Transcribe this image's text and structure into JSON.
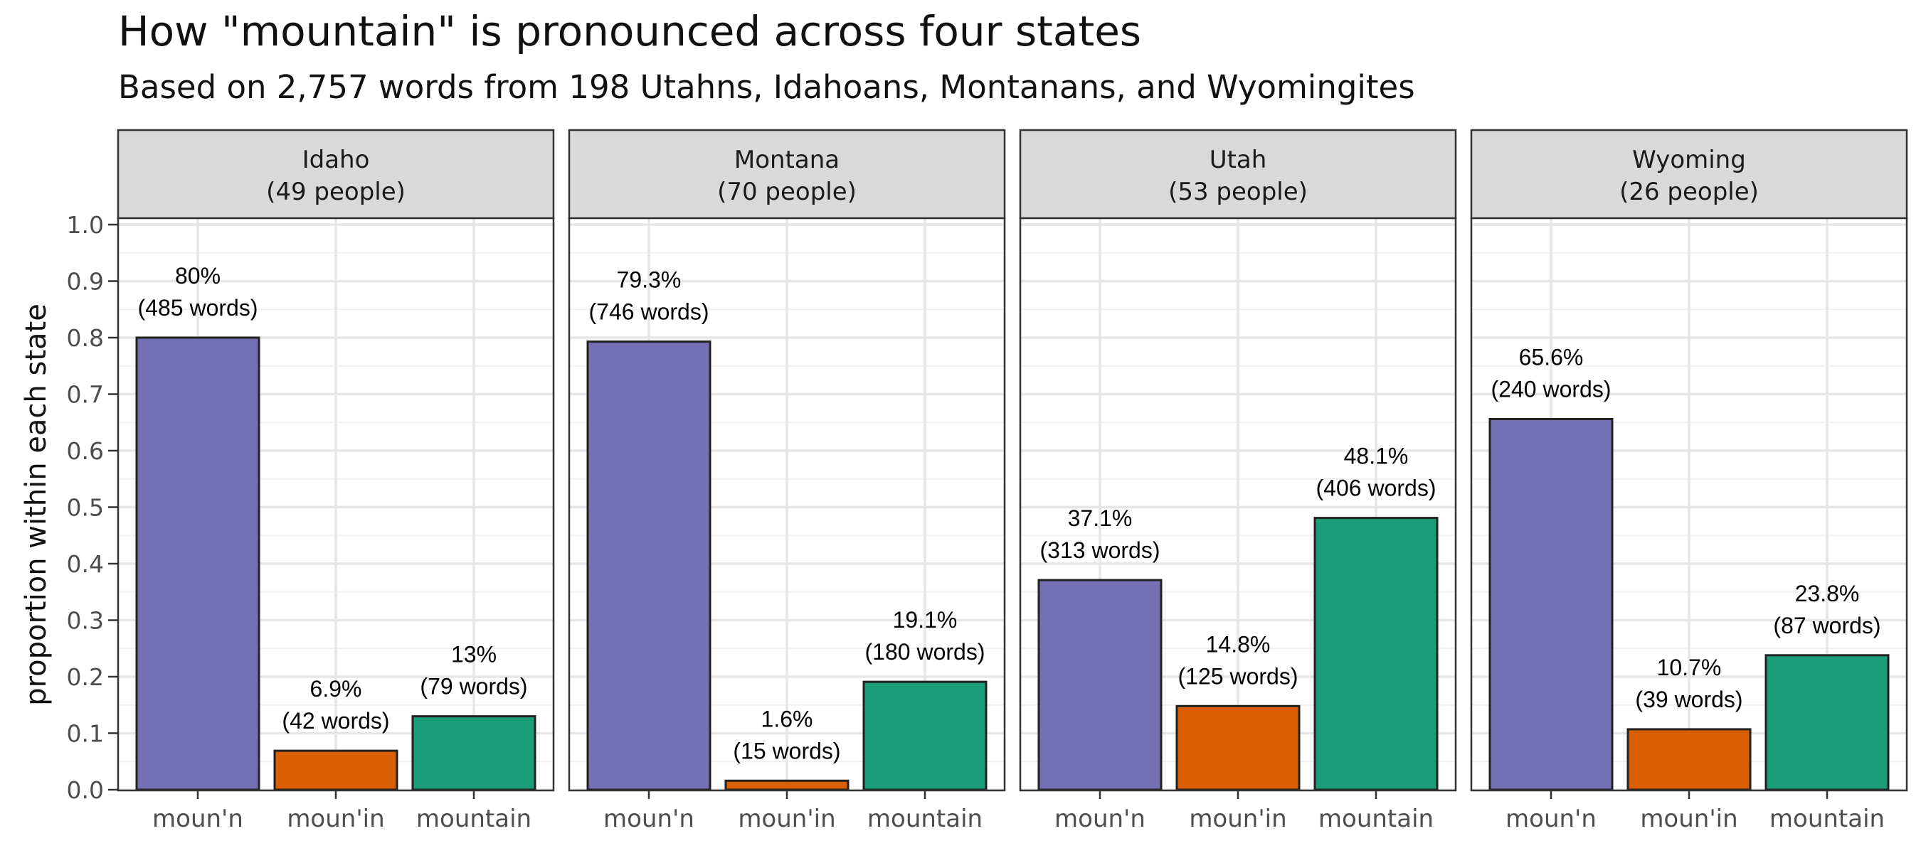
{
  "chart_data": {
    "type": "bar",
    "title": "How \"mountain\" is pronounced across four states",
    "subtitle": "Based on 2,757 words from 198 Utahns, Idahoans, Montanans, and Wyomingites",
    "ylabel": "proportion within each state",
    "xlabel": "",
    "ylim": [
      0,
      1.0
    ],
    "yticks": [
      "0.0",
      "0.1",
      "0.2",
      "0.3",
      "0.4",
      "0.5",
      "0.6",
      "0.7",
      "0.8",
      "0.9",
      "1.0"
    ],
    "grid": true,
    "legend": "none",
    "categories": [
      "moun'n",
      "moun'in",
      "mountain"
    ],
    "category_colors": [
      "#7570b3",
      "#d95f02",
      "#1b9e77"
    ],
    "facets": [
      {
        "name": "Idaho",
        "sub": "(49 people)",
        "values": [
          0.8,
          0.069,
          0.13
        ],
        "pct_labels": [
          "80%",
          "6.9%",
          "13%"
        ],
        "count_labels": [
          "(485 words)",
          "(42 words)",
          "(79 words)"
        ]
      },
      {
        "name": "Montana",
        "sub": "(70 people)",
        "values": [
          0.793,
          0.016,
          0.191
        ],
        "pct_labels": [
          "79.3%",
          "1.6%",
          "19.1%"
        ],
        "count_labels": [
          "(746 words)",
          "(15 words)",
          "(180 words)"
        ]
      },
      {
        "name": "Utah",
        "sub": "(53 people)",
        "values": [
          0.371,
          0.148,
          0.481
        ],
        "pct_labels": [
          "37.1%",
          "14.8%",
          "48.1%"
        ],
        "count_labels": [
          "(313 words)",
          "(125 words)",
          "(406 words)"
        ]
      },
      {
        "name": "Wyoming",
        "sub": "(26 people)",
        "values": [
          0.656,
          0.107,
          0.238
        ],
        "pct_labels": [
          "65.6%",
          "10.7%",
          "23.8%"
        ],
        "count_labels": [
          "(240 words)",
          "(39 words)",
          "(87 words)"
        ]
      }
    ]
  }
}
